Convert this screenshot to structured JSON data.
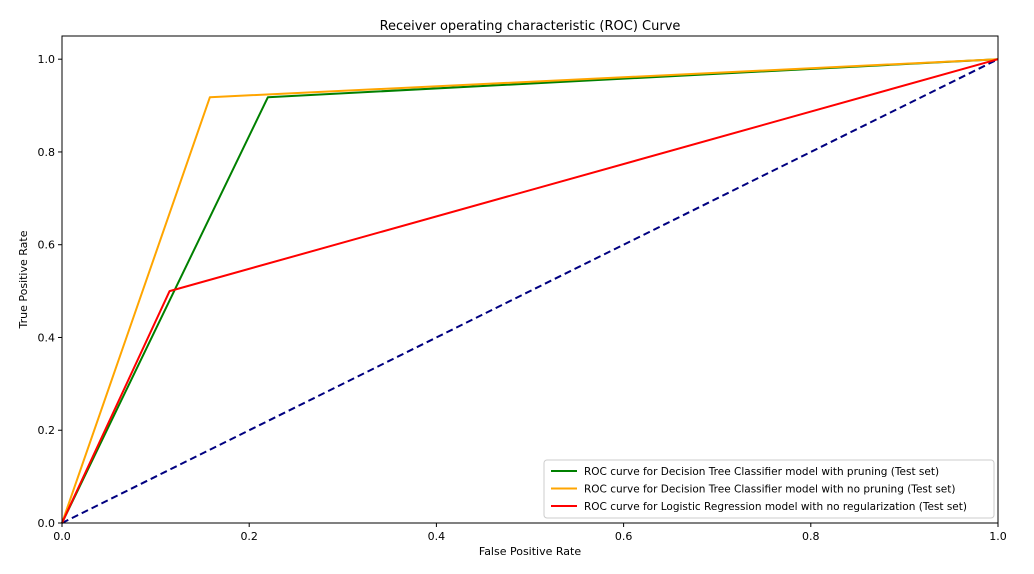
{
  "chart_data": {
    "type": "line",
    "title": "Receiver operating characteristic (ROC) Curve",
    "xlabel": "False Positive Rate",
    "ylabel": "True Positive Rate",
    "xlim": [
      0.0,
      1.0
    ],
    "ylim": [
      0.0,
      1.05
    ],
    "xticks": [
      "0.0",
      "0.2",
      "0.4",
      "0.6",
      "0.8",
      "1.0"
    ],
    "yticks": [
      "0.0",
      "0.2",
      "0.4",
      "0.6",
      "0.8",
      "1.0"
    ],
    "grid": false,
    "legend_position": "bottom-right",
    "series": [
      {
        "name": "ROC curve for Decision Tree Classifier model with pruning (Test set)",
        "color": "#008000",
        "style": "solid",
        "x": [
          0.0,
          0.22,
          1.0
        ],
        "y": [
          0.0,
          0.918,
          1.0
        ]
      },
      {
        "name": "ROC curve for Decision Tree Classifier model with no pruning (Test set)",
        "color": "#FFA500",
        "style": "solid",
        "x": [
          0.0,
          0.158,
          1.0
        ],
        "y": [
          0.0,
          0.918,
          1.0
        ]
      },
      {
        "name": "ROC curve for Logistic Regression model with no regularization (Test set)",
        "color": "#FF0000",
        "style": "solid",
        "x": [
          0.0,
          0.115,
          1.0
        ],
        "y": [
          0.0,
          0.5,
          1.0
        ]
      },
      {
        "color": "#000080",
        "style": "dashed",
        "x": [
          0.0,
          1.0
        ],
        "y": [
          0.0,
          1.0
        ]
      }
    ]
  }
}
